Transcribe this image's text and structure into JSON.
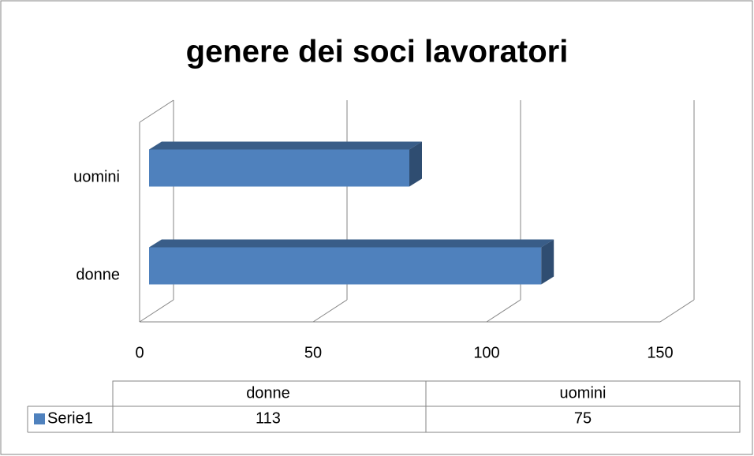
{
  "chart_data": {
    "type": "bar",
    "orientation": "horizontal",
    "title": "genere dei soci lavoratori",
    "categories": [
      "donne",
      "uomini"
    ],
    "series": [
      {
        "name": "Serie1",
        "color": "#4f81bd",
        "values": [
          113,
          75
        ]
      }
    ],
    "xlim": [
      0,
      150
    ],
    "xticks": [
      0,
      50,
      100,
      150
    ],
    "grid": true,
    "data_table": true
  }
}
